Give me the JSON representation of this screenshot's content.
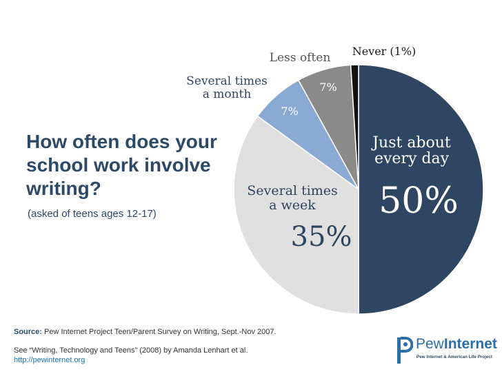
{
  "heading": {
    "title": "How often does your school work involve writing?",
    "subtitle": "(asked of teens ages 12-17)"
  },
  "footer": {
    "source_label": "Source:",
    "source_text": "Pew Internet Project Teen/Parent Survey on Writing, Sept.-Nov 2007.",
    "reference": "See “Writing, Technology and Teens” (2008) by Amanda Lenhart et al.",
    "url": "http://pewinternet.org"
  },
  "logo": {
    "word_light": "Pew",
    "word_bold": "Internet",
    "tagline": "Pew Internet & American Life Project"
  },
  "chart_data": {
    "type": "pie",
    "title": "How often does your school work involve writing?",
    "slices": [
      {
        "name": "Just about every day",
        "name_lines": [
          "Just about",
          "every day"
        ],
        "value": 50,
        "label": "50%",
        "color": "#2e4661"
      },
      {
        "name": "Several times a week",
        "name_lines": [
          "Several times",
          "a week"
        ],
        "value": 35,
        "label": "35%",
        "color": "#e0e0e0"
      },
      {
        "name": "Several times a month",
        "name_lines": [
          "Several times",
          "a month"
        ],
        "value": 7,
        "label": "7%",
        "color": "#8aaad3"
      },
      {
        "name": "Less often",
        "name_lines": [
          "Less often"
        ],
        "value": 7,
        "label": "7%",
        "color": "#8a8a8a"
      },
      {
        "name": "Never",
        "name_lines": [
          "Never (1%)"
        ],
        "value": 1,
        "label": "",
        "color": "#111111"
      }
    ],
    "legend": "none"
  }
}
